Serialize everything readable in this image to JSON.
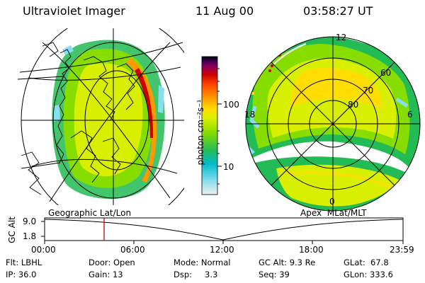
{
  "header": {
    "instrument": "Ultraviolet Imager",
    "date": "11 Aug 00",
    "time": "03:58:27 UT"
  },
  "left_map": {
    "caption": "Geographic Lat/Lon"
  },
  "colorbar": {
    "unit_label": "photon cm⁻²s⁻¹",
    "ticks": [
      "100",
      "10"
    ],
    "scale": "log"
  },
  "right_map": {
    "caption": "Apex  MLat/MLT",
    "mlt_labels": {
      "top": "12",
      "left": "18",
      "right": "6",
      "bottom": "0"
    },
    "mlat_labels": [
      "60",
      "70",
      "80"
    ]
  },
  "orbit_plot": {
    "ylabel": "GC Alt",
    "yticks": [
      "9.0",
      "1.8"
    ],
    "xticks": [
      "00:00",
      "06:00",
      "12:00",
      "18:00",
      "23:59"
    ],
    "current_time_fraction": 0.166,
    "marker_color": "#cc0000"
  },
  "info": {
    "row1": {
      "filter": "Flt: LBHL",
      "door": "Door: Open",
      "mode": "Mode: Normal",
      "gc_alt": "GC Alt: 9.3 Re",
      "glat": "GLat:  67.8"
    },
    "row2": {
      "ip": "IP: 36.0",
      "gain": "Gain: 13",
      "dsp_label": "Dsp:",
      "dsp_value": "3.3",
      "seq": "Seq: 39",
      "glon": "GLon: 333.6"
    }
  },
  "colors": {
    "ramp": [
      "#000000",
      "#3a0050",
      "#8a0060",
      "#cc0000",
      "#ff4400",
      "#ff9900",
      "#ffdd00",
      "#d8f000",
      "#88dd00",
      "#22bb55",
      "#00bbcc",
      "#88ddee",
      "#eeeeee"
    ]
  }
}
